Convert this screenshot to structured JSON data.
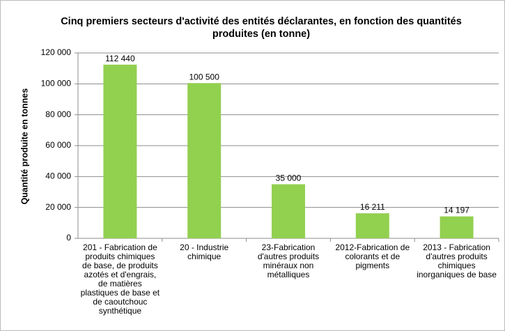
{
  "chart_data": {
    "type": "bar",
    "title": "Cinq premiers secteurs d'activité des entités déclarantes, en fonction des quantités produites (en tonne)",
    "ylabel": "Quantité produite en tonnes",
    "categories": [
      "201 - Fabrication de produits chimiques de base, de produits azotés et d'engrais, de matières plastiques de base et de caoutchouc synthétique",
      "20 - Industrie chimique",
      "23-Fabrication d'autres produits minéraux non métalliques",
      "2012-Fabrication de colorants et de pigments",
      "2013 - Fabrication d'autres produits chimiques inorganiques de base"
    ],
    "values": [
      112440,
      100500,
      35000,
      16211,
      14197
    ],
    "value_labels": [
      "112 440",
      "100 500",
      "35 000",
      "16 211",
      "14 197"
    ],
    "color": "#92d050",
    "ylim": [
      0,
      120000
    ],
    "yticks": [
      0,
      {
        "value": 20000,
        "label": "20 000"
      },
      {
        "value": 40000,
        "label": "40 000"
      },
      {
        "value": 60000,
        "label": "60 000"
      },
      {
        "value": 80000,
        "label": "80 000"
      },
      {
        "value": 100000,
        "label": "100 000"
      },
      {
        "value": 120000,
        "label": "120 000"
      }
    ],
    "grid": true
  }
}
